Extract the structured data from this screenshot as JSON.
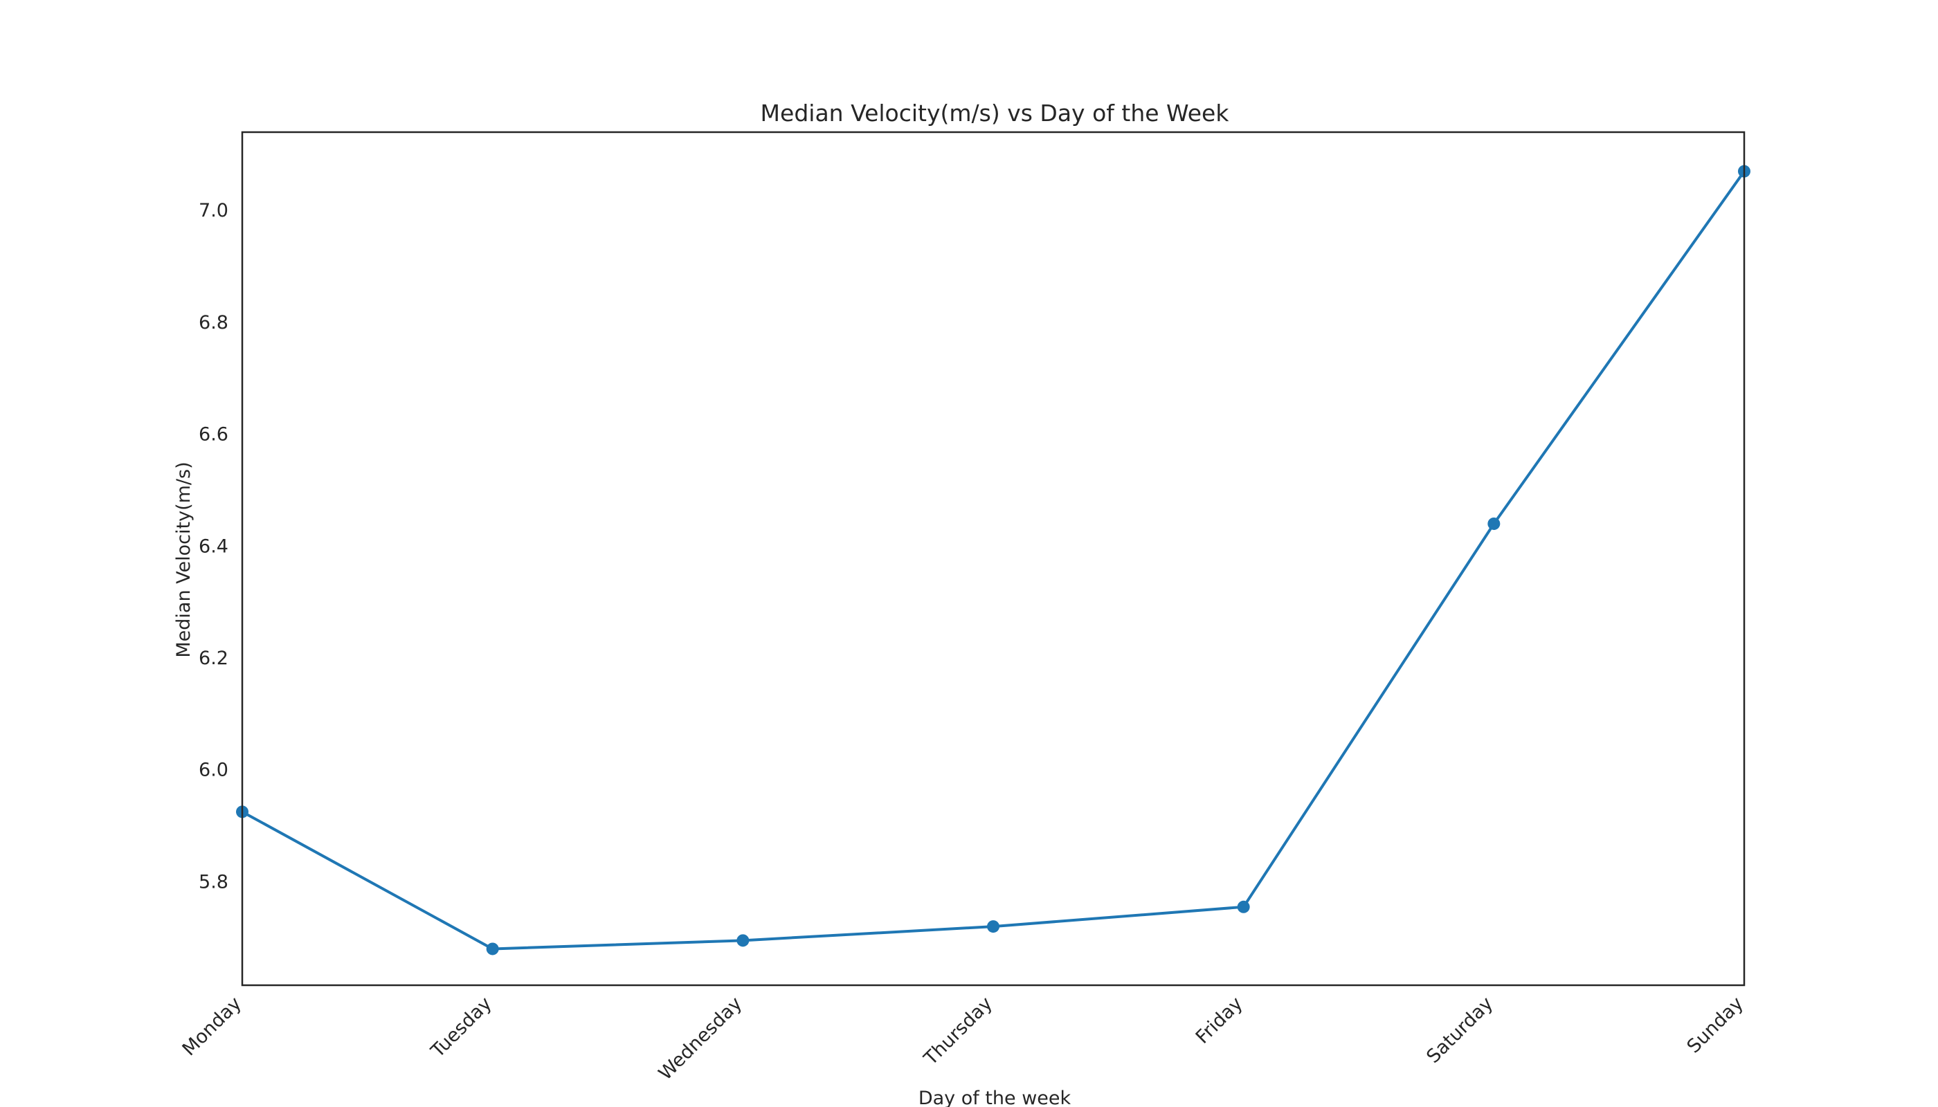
{
  "chart_data": {
    "type": "line",
    "title": "Median Velocity(m/s) vs Day of the Week",
    "xlabel": "Day of the week",
    "ylabel": "Median Velocity(m/s)",
    "categories": [
      "Monday",
      "Tuesday",
      "Wednesday",
      "Thursday",
      "Friday",
      "Saturday",
      "Sunday"
    ],
    "series": [
      {
        "values": [
          5.925,
          5.68,
          5.695,
          5.72,
          5.755,
          6.44,
          7.07
        ]
      }
    ],
    "ylim": [
      5.615,
      7.14
    ],
    "yticks": [
      5.8,
      6.0,
      6.2,
      6.4,
      6.6,
      6.8,
      7.0
    ],
    "ytick_labels": [
      "5.8",
      "6.0",
      "6.2",
      "6.4",
      "6.6",
      "6.8",
      "7.0"
    ],
    "grid": false,
    "colors": {
      "line": "#1f77b4",
      "frame": "#262626",
      "text": "#262626"
    }
  }
}
